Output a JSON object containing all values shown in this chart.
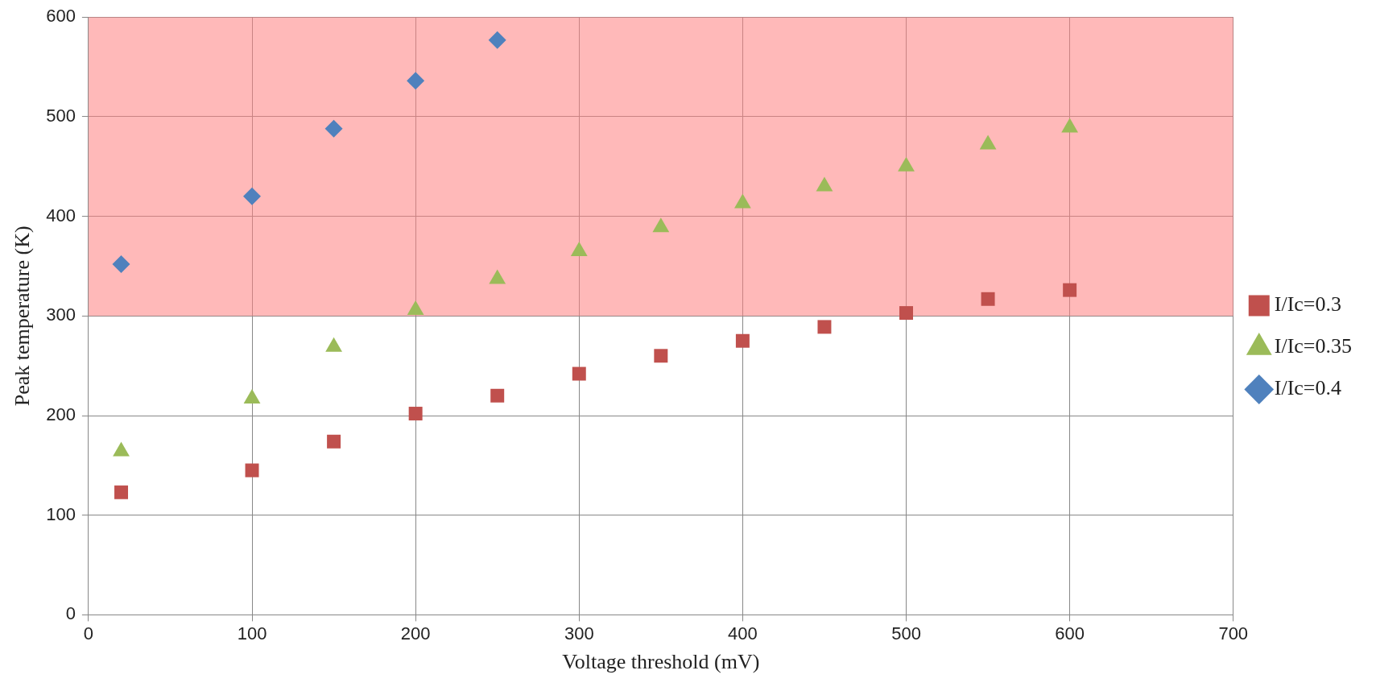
{
  "chart_data": {
    "type": "scatter",
    "xlabel": "Voltage threshold (mV)",
    "ylabel": "Peak temperature (K)",
    "xlim": [
      0,
      700
    ],
    "xticks": [
      0,
      100,
      200,
      300,
      400,
      500,
      600,
      700
    ],
    "ylim": [
      0,
      600
    ],
    "yticks": [
      0,
      100,
      200,
      300,
      400,
      500,
      600
    ],
    "grid": true,
    "legend": "right",
    "bands": [
      {
        "axis": "y",
        "from": 300,
        "to": 600,
        "color": "#ff8080"
      }
    ],
    "series": [
      {
        "name": "I/Ic=0.3",
        "color": "#c0504d",
        "marker": "square",
        "x": [
          20,
          100,
          150,
          200,
          250,
          300,
          350,
          400,
          450,
          500,
          550,
          600
        ],
        "values": [
          123,
          145,
          174,
          202,
          220,
          242,
          260,
          275,
          289,
          303,
          317,
          326
        ]
      },
      {
        "name": "I/Ic=0.35",
        "color": "#9bbb59",
        "marker": "triangle",
        "x": [
          20,
          100,
          150,
          200,
          250,
          300,
          350,
          400,
          450,
          500,
          550,
          600
        ],
        "values": [
          164,
          217,
          269,
          306,
          337,
          365,
          389,
          413,
          430,
          450,
          472,
          489
        ]
      },
      {
        "name": "I/Ic=0.4",
        "color": "#4f81bd",
        "marker": "diamond",
        "x": [
          20,
          100,
          150,
          200,
          250
        ],
        "values": [
          352,
          420,
          488,
          536,
          577
        ]
      }
    ]
  }
}
